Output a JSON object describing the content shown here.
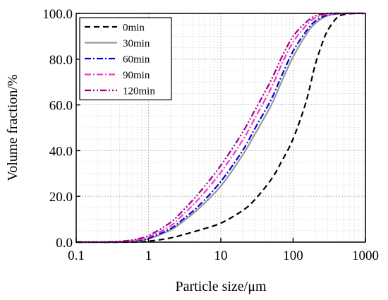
{
  "chart_data": {
    "type": "line",
    "title": "",
    "xlabel": "Particle size/μm",
    "ylabel": "Volume fraction/%",
    "x_scale": "log",
    "xlim": [
      0.1,
      1000
    ],
    "ylim": [
      0,
      100
    ],
    "x_ticks": [
      "0.1",
      "1",
      "10",
      "100",
      "1000"
    ],
    "y_ticks": [
      "0.0",
      "20.0",
      "40.0",
      "60.0",
      "80.0",
      "100.0"
    ],
    "grid": true,
    "legend_position": "top-left",
    "series": [
      {
        "name": "0min",
        "color": "#000000",
        "dash": "dash",
        "points": [
          [
            0.1,
            0
          ],
          [
            0.5,
            0
          ],
          [
            1,
            0.4
          ],
          [
            2,
            1.8
          ],
          [
            3,
            3.2
          ],
          [
            5,
            5.2
          ],
          [
            10,
            8.3
          ],
          [
            20,
            13.8
          ],
          [
            30,
            18.8
          ],
          [
            50,
            27.5
          ],
          [
            70,
            35.5
          ],
          [
            100,
            45.2
          ],
          [
            150,
            61
          ],
          [
            200,
            77
          ],
          [
            250,
            86.5
          ],
          [
            300,
            92.5
          ],
          [
            400,
            98
          ],
          [
            500,
            99.5
          ],
          [
            700,
            100
          ],
          [
            1000,
            100
          ]
        ]
      },
      {
        "name": "30min",
        "color": "#999999",
        "dash": "solid",
        "points": [
          [
            0.1,
            0
          ],
          [
            0.3,
            0
          ],
          [
            0.5,
            0.2
          ],
          [
            0.7,
            0.6
          ],
          [
            1,
            1.4
          ],
          [
            2,
            5.2
          ],
          [
            3,
            9
          ],
          [
            5,
            14.8
          ],
          [
            10,
            24.5
          ],
          [
            20,
            38
          ],
          [
            30,
            47.5
          ],
          [
            50,
            60
          ],
          [
            70,
            70.5
          ],
          [
            100,
            81
          ],
          [
            150,
            90.5
          ],
          [
            200,
            95.5
          ],
          [
            300,
            99
          ],
          [
            500,
            100
          ],
          [
            1000,
            100
          ]
        ]
      },
      {
        "name": "60min",
        "color": "#0000dd",
        "dash": "dashdot",
        "points": [
          [
            0.1,
            0
          ],
          [
            0.3,
            0
          ],
          [
            0.5,
            0.3
          ],
          [
            0.7,
            0.8
          ],
          [
            1,
            1.7
          ],
          [
            2,
            5.8
          ],
          [
            3,
            10
          ],
          [
            5,
            16
          ],
          [
            10,
            26.5
          ],
          [
            20,
            40
          ],
          [
            30,
            50
          ],
          [
            50,
            62.5
          ],
          [
            70,
            73
          ],
          [
            100,
            83.5
          ],
          [
            150,
            92
          ],
          [
            200,
            96.5
          ],
          [
            300,
            99.3
          ],
          [
            500,
            100
          ],
          [
            1000,
            100
          ]
        ]
      },
      {
        "name": "90min",
        "color": "#ff33cc",
        "dash": "dashdot",
        "points": [
          [
            0.1,
            0
          ],
          [
            0.3,
            0.1
          ],
          [
            0.5,
            0.4
          ],
          [
            0.7,
            1
          ],
          [
            1,
            2.2
          ],
          [
            2,
            7
          ],
          [
            3,
            12
          ],
          [
            5,
            19
          ],
          [
            10,
            30.5
          ],
          [
            20,
            44.5
          ],
          [
            30,
            54.5
          ],
          [
            50,
            67.5
          ],
          [
            70,
            78
          ],
          [
            100,
            87.5
          ],
          [
            150,
            94.5
          ],
          [
            200,
            98
          ],
          [
            300,
            99.7
          ],
          [
            500,
            100
          ],
          [
            1000,
            100
          ]
        ]
      },
      {
        "name": "120min",
        "color": "#990088",
        "dash": "dashdotdot",
        "points": [
          [
            0.1,
            0
          ],
          [
            0.3,
            0.1
          ],
          [
            0.5,
            0.6
          ],
          [
            0.7,
            1.4
          ],
          [
            1,
            2.8
          ],
          [
            2,
            8.5
          ],
          [
            3,
            13.8
          ],
          [
            5,
            21.5
          ],
          [
            10,
            33.5
          ],
          [
            20,
            48
          ],
          [
            30,
            58
          ],
          [
            50,
            71
          ],
          [
            70,
            81
          ],
          [
            100,
            90
          ],
          [
            150,
            96
          ],
          [
            200,
            98.8
          ],
          [
            300,
            100
          ],
          [
            500,
            100
          ],
          [
            1000,
            100
          ]
        ]
      }
    ]
  }
}
